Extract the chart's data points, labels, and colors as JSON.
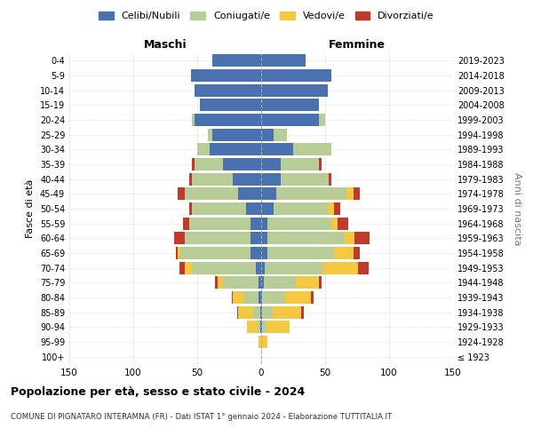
{
  "age_groups": [
    "100+",
    "95-99",
    "90-94",
    "85-89",
    "80-84",
    "75-79",
    "70-74",
    "65-69",
    "60-64",
    "55-59",
    "50-54",
    "45-49",
    "40-44",
    "35-39",
    "30-34",
    "25-29",
    "20-24",
    "15-19",
    "10-14",
    "5-9",
    "0-4"
  ],
  "birth_years": [
    "≤ 1923",
    "1924-1928",
    "1929-1933",
    "1934-1938",
    "1939-1943",
    "1944-1948",
    "1949-1953",
    "1954-1958",
    "1959-1963",
    "1964-1968",
    "1969-1973",
    "1974-1978",
    "1979-1983",
    "1984-1988",
    "1989-1993",
    "1994-1998",
    "1999-2003",
    "2004-2008",
    "2009-2013",
    "2014-2018",
    "2019-2023"
  ],
  "colors": {
    "celibi": "#4a72b0",
    "coniugati": "#b8cc96",
    "vedovi": "#f5c842",
    "divorziati": "#c0392b"
  },
  "maschi": {
    "celibi": [
      0,
      0,
      1,
      1,
      2,
      2,
      4,
      8,
      8,
      8,
      12,
      18,
      22,
      30,
      40,
      38,
      52,
      48,
      52,
      55,
      38
    ],
    "coniugati": [
      0,
      0,
      2,
      5,
      12,
      28,
      50,
      55,
      52,
      48,
      42,
      42,
      32,
      22,
      10,
      4,
      2,
      0,
      0,
      0,
      0
    ],
    "vedovi": [
      0,
      2,
      8,
      12,
      8,
      4,
      6,
      2,
      0,
      0,
      0,
      0,
      0,
      0,
      0,
      0,
      0,
      0,
      0,
      0,
      0
    ],
    "divorziati": [
      0,
      0,
      0,
      1,
      1,
      2,
      4,
      2,
      8,
      5,
      2,
      5,
      2,
      2,
      0,
      0,
      0,
      0,
      0,
      0,
      0
    ]
  },
  "femmine": {
    "celibi": [
      0,
      0,
      1,
      1,
      1,
      2,
      3,
      5,
      5,
      5,
      10,
      12,
      15,
      15,
      25,
      10,
      45,
      45,
      52,
      55,
      35
    ],
    "coniugati": [
      0,
      0,
      3,
      8,
      18,
      25,
      45,
      52,
      60,
      50,
      42,
      55,
      38,
      30,
      30,
      10,
      5,
      0,
      0,
      0,
      0
    ],
    "vedovi": [
      0,
      5,
      18,
      22,
      20,
      18,
      28,
      15,
      8,
      5,
      5,
      5,
      0,
      0,
      0,
      0,
      0,
      0,
      0,
      0,
      0
    ],
    "divorziati": [
      0,
      0,
      0,
      2,
      2,
      2,
      8,
      5,
      12,
      8,
      5,
      5,
      2,
      2,
      0,
      0,
      0,
      0,
      0,
      0,
      0
    ]
  },
  "title": "Popolazione per età, sesso e stato civile - 2024",
  "subtitle": "COMUNE DI PIGNATARO INTERAMNA (FR) - Dati ISTAT 1° gennaio 2024 - Elaborazione TUTTITALIA.IT",
  "xlabel_left": "Maschi",
  "xlabel_right": "Femmine",
  "ylabel_left": "Fasce di età",
  "ylabel_right": "Anni di nascita",
  "xlim": 150,
  "legend_labels": [
    "Celibi/Nubili",
    "Coniugati/e",
    "Vedovi/e",
    "Divorziati/e"
  ],
  "background_color": "#ffffff",
  "grid_color": "#cccccc"
}
